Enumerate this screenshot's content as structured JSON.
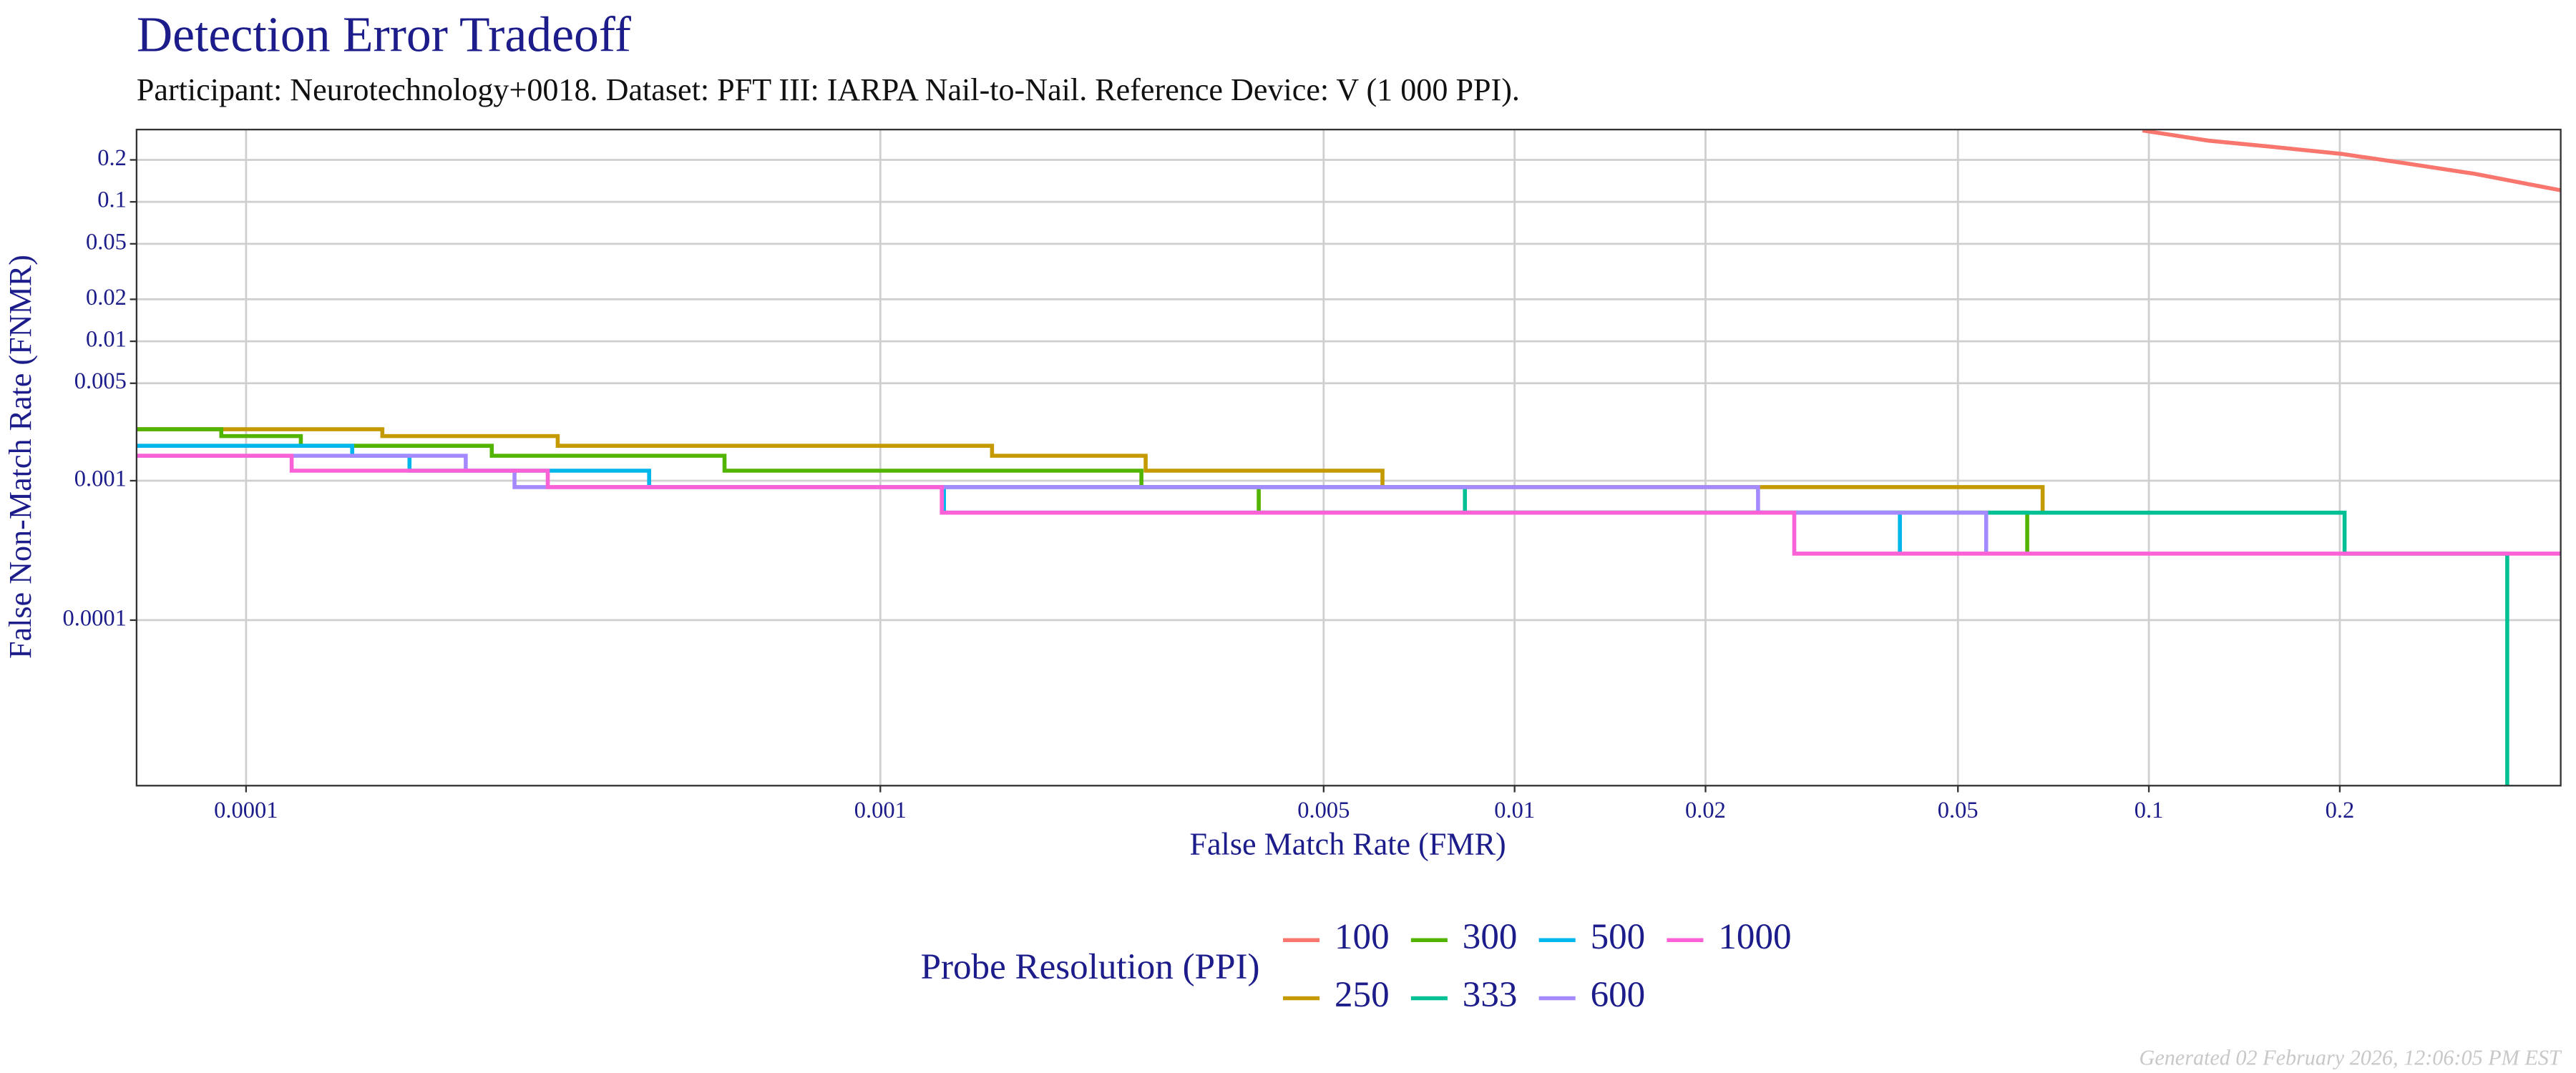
{
  "chart_data": {
    "type": "line",
    "title": "Detection Error Tradeoff",
    "subtitle": "Participant: Neurotechnology+0018. Dataset: PFT III: IARPA Nail-to-Nail. Reference Device: V (1 000 PPI).",
    "x_label": "False Match Rate (FMR)",
    "y_label": "False Non-Match Rate (FNMR)",
    "x_log": true,
    "y_log": true,
    "grid": true,
    "xlim": [
      6.72e-05,
      0.446
    ],
    "ylim": [
      6.5e-06,
      0.33
    ],
    "xticks": [
      0.0001,
      0.001,
      0.005,
      0.01,
      0.02,
      0.05,
      0.1,
      0.2
    ],
    "yticks": [
      0.0001,
      0.001,
      0.005,
      0.01,
      0.02,
      0.05,
      0.1,
      0.2
    ],
    "legend_title": "Probe Resolution (PPI)",
    "legend_position": "bottom",
    "footer": "Generated 02 February 2026, 12:06:05 PM EST",
    "series": [
      {
        "name": "100",
        "color": "#F8766D",
        "x": [
          0.0977,
          0.124,
          0.158,
          0.201,
          0.256,
          0.326,
          0.446
        ],
        "y": [
          0.325,
          0.275,
          0.247,
          0.221,
          0.188,
          0.159,
          0.121
        ]
      },
      {
        "name": "250",
        "color": "#C49A00",
        "x": [
          6.72e-05,
          0.000164,
          0.000164,
          0.00031,
          0.00031,
          0.0015,
          0.0015,
          0.00262,
          0.00262,
          0.00619,
          0.00619,
          0.068,
          0.068
        ],
        "y": [
          0.00234,
          0.00234,
          0.00209,
          0.00209,
          0.00178,
          0.00178,
          0.00151,
          0.00151,
          0.00118,
          0.00118,
          0.0009,
          0.0009,
          0.00059
        ]
      },
      {
        "name": "300",
        "color": "#53B400",
        "x": [
          6.72e-05,
          9.14e-05,
          9.14e-05,
          0.000122,
          0.000122,
          0.000244,
          0.000244,
          0.000568,
          0.000568,
          0.00258,
          0.00258,
          0.00395,
          0.00395,
          0.0643,
          0.0643
        ],
        "y": [
          0.00234,
          0.00234,
          0.00209,
          0.00209,
          0.00178,
          0.00178,
          0.00151,
          0.00151,
          0.00118,
          0.00118,
          0.0009,
          0.0009,
          0.00059,
          0.00059,
          0.0003
        ]
      },
      {
        "name": "333",
        "color": "#00C094",
        "x": [
          0.00125,
          0.00835,
          0.00835,
          0.2035,
          0.2035,
          0.3673,
          0.3673
        ],
        "y": [
          0.0009,
          0.0009,
          0.00059,
          0.00059,
          0.0003,
          0.0003,
          6.5e-06
        ]
      },
      {
        "name": "500",
        "color": "#00B6EB",
        "x": [
          6.72e-05,
          0.000147,
          0.000147,
          0.000181,
          0.000181,
          0.000432,
          0.000432,
          0.00126,
          0.00126,
          0.0405,
          0.0405
        ],
        "y": [
          0.00178,
          0.00178,
          0.00151,
          0.00151,
          0.00118,
          0.00118,
          0.0009,
          0.0009,
          0.00059,
          0.00059,
          0.0003
        ]
      },
      {
        "name": "600",
        "color": "#A58AFF",
        "x": [
          6.72e-05,
          0.000222,
          0.000222,
          0.000265,
          0.000265,
          0.0242,
          0.0242,
          0.0554,
          0.0554
        ],
        "y": [
          0.00151,
          0.00151,
          0.00118,
          0.00118,
          0.0009,
          0.0009,
          0.00059,
          0.00059,
          0.0003
        ]
      },
      {
        "name": "1000",
        "color": "#FB61D7",
        "x": [
          6.72e-05,
          0.000118,
          0.000118,
          0.000299,
          0.000299,
          0.00125,
          0.00125,
          0.0276,
          0.0276,
          0.446
        ],
        "y": [
          0.00151,
          0.00151,
          0.00118,
          0.00118,
          0.0009,
          0.0009,
          0.00059,
          0.00059,
          0.0003,
          0.0003
        ]
      }
    ]
  }
}
